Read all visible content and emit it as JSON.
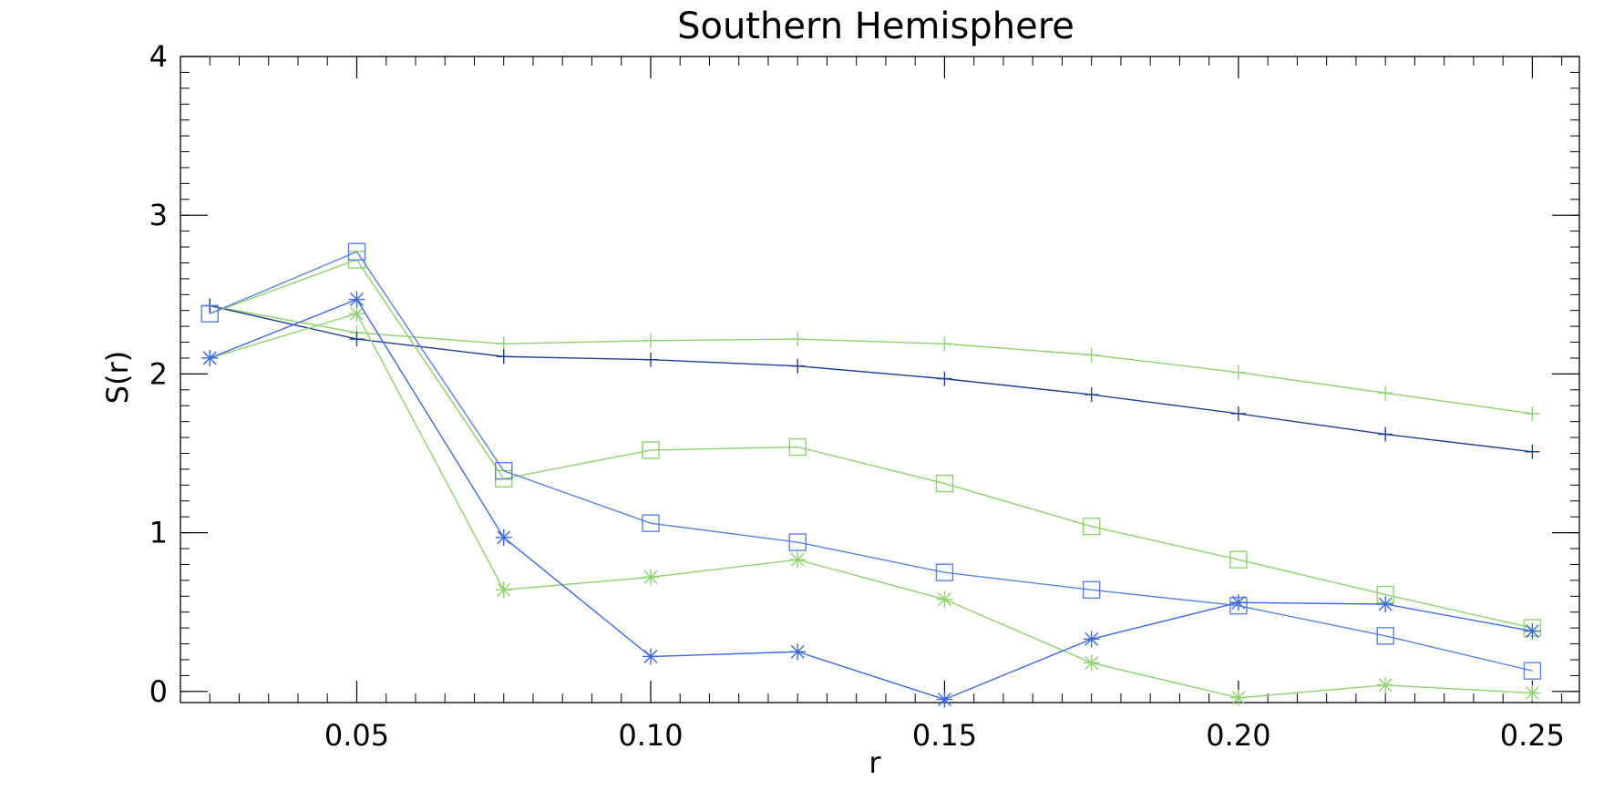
{
  "chart_data": {
    "type": "line",
    "title": "Southern Hemisphere",
    "xlabel": "r",
    "ylabel": "S(r)",
    "xlim": [
      0.02,
      0.258
    ],
    "ylim": [
      -0.07,
      4.0
    ],
    "x_ticks": [
      {
        "value": 0.05,
        "label": "0.05"
      },
      {
        "value": 0.1,
        "label": "0.10"
      },
      {
        "value": 0.15,
        "label": "0.15"
      },
      {
        "value": 0.2,
        "label": "0.20"
      },
      {
        "value": 0.25,
        "label": "0.25"
      }
    ],
    "y_ticks": [
      {
        "value": 0,
        "label": "0"
      },
      {
        "value": 1,
        "label": "1"
      },
      {
        "value": 2,
        "label": "2"
      },
      {
        "value": 3,
        "label": "3"
      },
      {
        "value": 4,
        "label": "4"
      }
    ],
    "x_minor_step": 0.005,
    "y_minor_step": 0.1,
    "grid": false,
    "legend": "none",
    "x": [
      0.025,
      0.05,
      0.075,
      0.1,
      0.125,
      0.15,
      0.175,
      0.2,
      0.225,
      0.25
    ],
    "series": [
      {
        "color": "#8fd06f",
        "marker": "plus",
        "values": [
          2.43,
          2.26,
          2.19,
          2.21,
          2.22,
          2.19,
          2.12,
          2.01,
          1.88,
          1.75
        ]
      },
      {
        "color": "#1f3f8f",
        "marker": "plus",
        "values": [
          2.43,
          2.22,
          2.11,
          2.09,
          2.05,
          1.97,
          1.87,
          1.75,
          1.62,
          1.51
        ]
      },
      {
        "color": "#8fd06f",
        "marker": "square",
        "values": [
          2.38,
          2.72,
          1.34,
          1.52,
          1.54,
          1.31,
          1.04,
          0.83,
          0.61,
          0.4
        ]
      },
      {
        "color": "#5b82e0",
        "marker": "square",
        "values": [
          2.38,
          2.77,
          1.39,
          1.06,
          0.94,
          0.75,
          0.64,
          0.54,
          0.35,
          0.13
        ]
      },
      {
        "color": "#8fd06f",
        "marker": "asterisk",
        "values": [
          2.1,
          2.38,
          0.64,
          0.72,
          0.83,
          0.58,
          0.18,
          -0.04,
          0.04,
          -0.01
        ]
      },
      {
        "color": "#3d68e0",
        "marker": "asterisk",
        "values": [
          2.1,
          2.47,
          0.97,
          0.22,
          0.25,
          -0.05,
          0.33,
          0.56,
          0.55,
          0.38
        ]
      }
    ]
  }
}
